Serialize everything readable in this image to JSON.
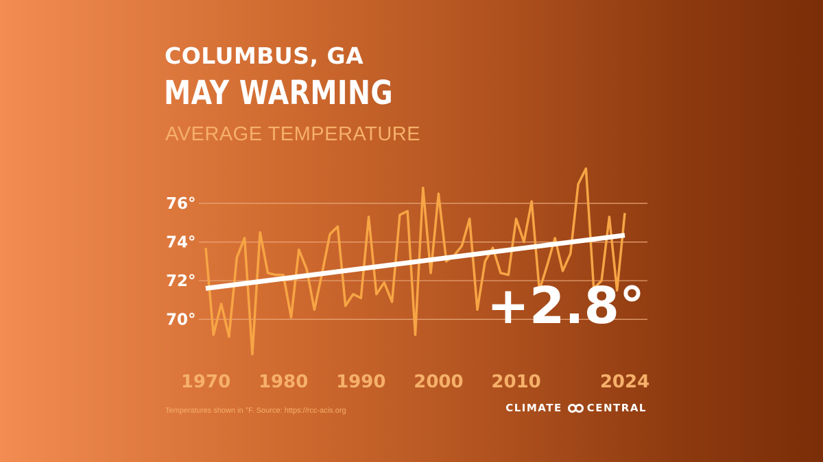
{
  "header": {
    "location": "COLUMBUS, GA",
    "title": "MAY WARMING",
    "subtitle": "AVERAGE TEMPERATURE"
  },
  "colors": {
    "series_line": "#f7a545",
    "trend_line": "#ffffff",
    "grid": "#e9a77a",
    "tick_label_x": "#f6b06a",
    "tick_label_y": "#ffffff"
  },
  "chart_data": {
    "type": "line",
    "title": "AVERAGE TEMPERATURE",
    "xlabel": "",
    "ylabel": "",
    "unit": "°F",
    "xlim": [
      1970,
      2024
    ],
    "ylim": [
      68,
      78.2
    ],
    "y_ticks": [
      70,
      72,
      74,
      76
    ],
    "y_tick_labels": [
      "70°",
      "72°",
      "74°",
      "76°"
    ],
    "x_ticks": [
      1970,
      1980,
      1990,
      2000,
      2010,
      2024
    ],
    "x_tick_labels": [
      "1970",
      "1980",
      "1990",
      "2000",
      "2010",
      "2024"
    ],
    "grid": true,
    "series": [
      {
        "x": [
          1970,
          1971,
          1972,
          1973,
          1974,
          1975,
          1976,
          1977,
          1978,
          1979,
          1980,
          1981,
          1982,
          1983,
          1984,
          1985,
          1986,
          1987,
          1988,
          1989,
          1990,
          1991,
          1992,
          1993,
          1994,
          1995,
          1996,
          1997,
          1998,
          1999,
          2000,
          2001,
          2002,
          2003,
          2004,
          2005,
          2006,
          2007,
          2008,
          2009,
          2010,
          2011,
          2012,
          2013,
          2014,
          2015,
          2016,
          2017,
          2018,
          2019,
          2020,
          2021,
          2022,
          2023,
          2024
        ],
        "values": [
          73.7,
          69.2,
          70.8,
          69.1,
          73.2,
          74.2,
          68.2,
          74.5,
          72.4,
          72.3,
          72.3,
          70.1,
          73.6,
          72.6,
          70.5,
          72.4,
          74.4,
          74.8,
          70.7,
          71.3,
          71.1,
          75.3,
          71.3,
          71.9,
          70.9,
          75.4,
          75.6,
          69.2,
          76.8,
          72.4,
          76.5,
          73.0,
          73.3,
          73.8,
          75.2,
          70.5,
          73.0,
          73.7,
          72.4,
          72.3,
          75.2,
          74.0,
          76.1,
          71.5,
          72.8,
          74.2,
          72.5,
          73.4,
          77.0,
          77.8,
          71.6,
          72.0,
          75.3,
          71.5,
          75.5
        ]
      }
    ],
    "trend": {
      "x": [
        1970,
        2024
      ],
      "values": [
        71.6,
        74.35
      ]
    },
    "annotation": "+2.8°"
  },
  "footer": {
    "source": "Temperatures shown in °F. Source: https://rcc-acis.org",
    "brand_left": "CLIMATE",
    "brand_right": "CENTRAL"
  }
}
